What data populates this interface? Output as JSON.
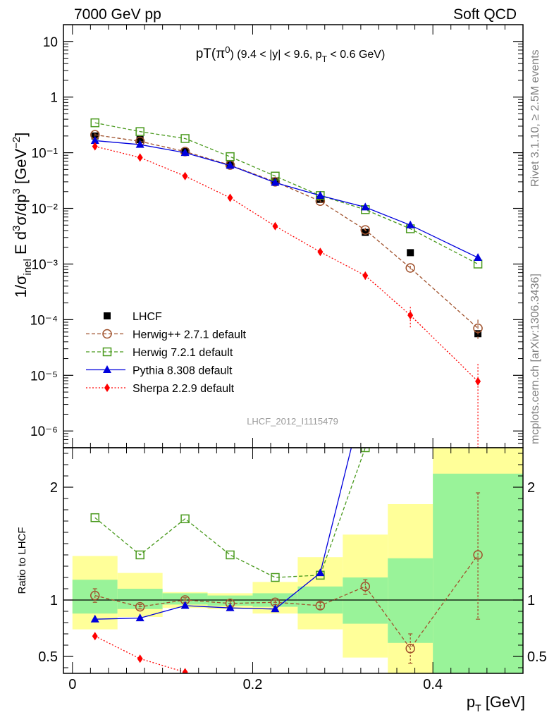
{
  "header": {
    "left": "7000 GeV pp",
    "right": "Soft QCD"
  },
  "side_labels": {
    "rivet": "Rivet 3.1.10, ≥ 2.5M events",
    "mcplots": "mcplots.cern.ch [arXiv:1306.3436]"
  },
  "watermark": "LHCF_2012_I1115479",
  "chart_data": [
    {
      "type": "scatter",
      "panel": "main",
      "title": "pT(π⁰) (9.4 < |y| < 9.6, p_T < 0.6 GeV)",
      "ylabel": "1/σ_inel E d³σ/dp³ [GeV⁻²]",
      "xlim": [
        -0.01,
        0.5
      ],
      "ylim": [
        5e-07,
        20
      ],
      "yscale": "log",
      "grid": false,
      "legend_position": "lower-left",
      "x": [
        0.025,
        0.075,
        0.125,
        0.175,
        0.225,
        0.275,
        0.325,
        0.375,
        0.45
      ],
      "series": [
        {
          "name": "LHCF",
          "color": "#000000",
          "style": "data",
          "values": [
            0.2,
            0.172,
            0.105,
            0.063,
            0.031,
            0.0145,
            0.0037,
            0.0016,
            5.6e-05
          ]
        },
        {
          "name": "Herwig++ 2.7.1 default",
          "color": "#a0522d",
          "style": "dashed",
          "values": [
            0.21,
            0.16,
            0.105,
            0.06,
            0.03,
            0.0135,
            0.0041,
            0.00085,
            7e-05
          ],
          "err_hi": [
            0.225,
            0.17,
            0.11,
            0.063,
            0.032,
            0.0143,
            0.0045,
            0.00093,
            0.0001
          ],
          "err_lo": [
            0.195,
            0.15,
            0.1,
            0.057,
            0.029,
            0.0127,
            0.0037,
            0.00077,
            4.5e-05
          ]
        },
        {
          "name": "Herwig 7.2.1 default",
          "color": "#4a9a1e",
          "style": "dashed",
          "values": [
            0.345,
            0.24,
            0.18,
            0.085,
            0.038,
            0.017,
            0.0095,
            0.0043,
            0.001
          ]
        },
        {
          "name": "Pythia 8.308 default",
          "color": "#0000dd",
          "style": "solid",
          "values": [
            0.165,
            0.14,
            0.1,
            0.059,
            0.029,
            0.017,
            0.0105,
            0.005,
            0.0013
          ]
        },
        {
          "name": "Sherpa 2.2.9 default",
          "color": "#ff0000",
          "style": "dotted",
          "values": [
            0.13,
            0.082,
            0.038,
            0.0155,
            0.0048,
            0.00165,
            0.00062,
            0.00012,
            7.8e-06
          ],
          "err_hi": [
            0.138,
            0.087,
            0.041,
            0.0165,
            0.0052,
            0.0018,
            0.00072,
            0.00017,
            1.6e-05
          ],
          "err_lo": [
            0.122,
            0.077,
            0.035,
            0.0145,
            0.0044,
            0.0015,
            0.00052,
            7e-05,
            4e-07
          ]
        }
      ],
      "yticks": [
        "10⁻⁶",
        "10⁻⁵",
        "10⁻⁴",
        "10⁻³",
        "10⁻²",
        "10⁻¹",
        "1",
        "10"
      ]
    },
    {
      "type": "line",
      "panel": "ratio",
      "ylabel": "Ratio to LHCF",
      "xlabel": "p_T [GeV]",
      "xlim": [
        -0.01,
        0.5
      ],
      "ylim": [
        0.35,
        2.35
      ],
      "reference": 1,
      "bins": [
        [
          0.0,
          0.05
        ],
        [
          0.05,
          0.1
        ],
        [
          0.1,
          0.15
        ],
        [
          0.15,
          0.2
        ],
        [
          0.2,
          0.25
        ],
        [
          0.25,
          0.3
        ],
        [
          0.3,
          0.35
        ],
        [
          0.35,
          0.4
        ],
        [
          0.4,
          0.5
        ]
      ],
      "band_inner": [
        [
          0.88,
          1.18
        ],
        [
          0.92,
          1.1
        ],
        [
          0.96,
          1.06
        ],
        [
          0.95,
          1.04
        ],
        [
          0.94,
          1.06
        ],
        [
          0.88,
          1.12
        ],
        [
          0.79,
          1.2
        ],
        [
          0.62,
          1.37
        ],
        [
          0.35,
          2.12
        ]
      ],
      "band_outer": [
        [
          0.74,
          1.39
        ],
        [
          0.85,
          1.24
        ],
        [
          0.93,
          1.07
        ],
        [
          0.92,
          1.06
        ],
        [
          0.88,
          1.16
        ],
        [
          0.74,
          1.38
        ],
        [
          0.49,
          1.58
        ],
        [
          0.35,
          1.85
        ],
        [
          0.35,
          2.35
        ]
      ],
      "x": [
        0.025,
        0.075,
        0.125,
        0.175,
        0.225,
        0.275,
        0.325,
        0.375,
        0.45
      ],
      "series": [
        {
          "name": "Herwig++ 2.7.1 default",
          "color": "#a0522d",
          "style": "dashed",
          "values": [
            1.04,
            0.94,
            1.0,
            0.97,
            0.98,
            0.95,
            1.12,
            0.57,
            1.4
          ],
          "err_hi": [
            1.1,
            0.96,
            1.02,
            0.99,
            1.0,
            0.98,
            1.18,
            0.7,
            1.95
          ],
          "err_lo": [
            0.98,
            0.92,
            0.98,
            0.95,
            0.96,
            0.92,
            1.05,
            0.44,
            0.83
          ]
        },
        {
          "name": "Herwig 7.2.1 default",
          "color": "#4a9a1e",
          "style": "dashed",
          "values": [
            1.73,
            1.4,
            1.72,
            1.4,
            1.2,
            1.22,
            2.35,
            null,
            null
          ]
        },
        {
          "name": "Pythia 8.308 default",
          "color": "#0000dd",
          "style": "solid",
          "values": [
            0.83,
            0.84,
            0.95,
            0.93,
            0.92,
            1.24,
            2.85,
            null,
            null
          ]
        },
        {
          "name": "Sherpa 2.2.9 default",
          "color": "#ff0000",
          "style": "dotted",
          "values": [
            0.68,
            0.48,
            0.36,
            null,
            null,
            null,
            null,
            null,
            null
          ]
        }
      ],
      "xticks": [
        "0",
        "0.2",
        "0.4"
      ],
      "yticks": [
        "0.5",
        "1",
        "2"
      ]
    }
  ],
  "pt_title_parts": {
    "main": "pT(π",
    "sup": "0",
    "rest": ") (9.4 < |y| < 9.6, p",
    "sub": "T",
    "tail": " < 0.6 GeV)"
  },
  "ylabel_parts": {
    "pre": "1/σ",
    "sub": "inel",
    "mid": " E d",
    "sup1": "3",
    "mid2": "σ/dp",
    "sup2": "3",
    "mid3": " [GeV",
    "sup3": "−2",
    "end": "]"
  },
  "xlabel_parts": {
    "pre": "p",
    "sub": "T",
    "post": " [GeV]"
  },
  "ratio_ylabel": "Ratio to LHCF"
}
